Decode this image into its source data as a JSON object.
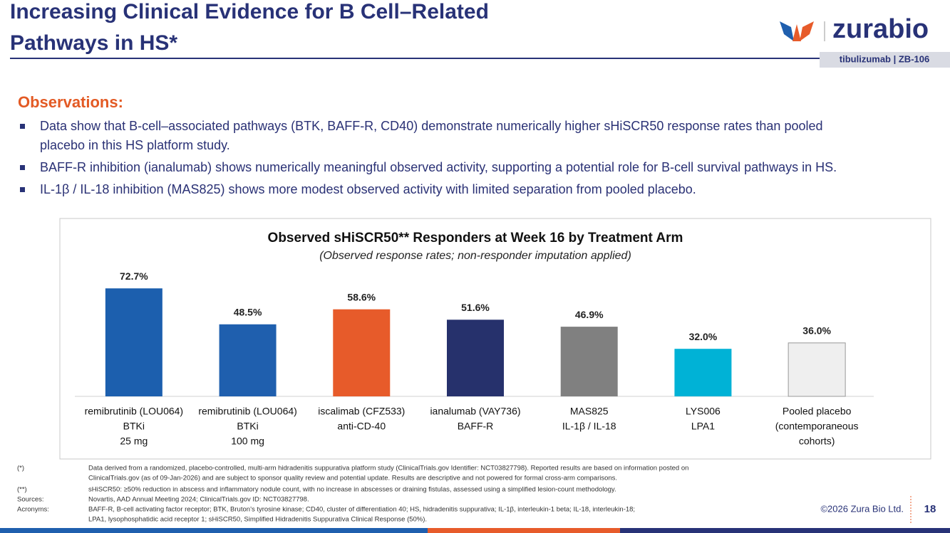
{
  "header": {
    "title": [
      "Increasing Clinical Evidence for B Cell–Related",
      "Pathways in HS*"
    ],
    "logo": "zurabio",
    "tag": "tibulizumab  |  ZB-106"
  },
  "observations": {
    "heading": "Observations:",
    "bullets": [
      [
        "Data show that B-cell–associated pathways (BTK, BAFF-R, CD40) demonstrate numerically higher sHiSCR50 response rates than pooled",
        "placebo in this HS platform study."
      ],
      [
        "BAFF-R inhibition (ianalumab) shows numerically meaningful observed activity, supporting a potential role for B-cell survival pathways in HS."
      ],
      [
        "IL-1β / IL-18 inhibition (MAS825) shows more modest observed activity with limited separation from pooled placebo."
      ]
    ]
  },
  "chart_data": {
    "type": "bar",
    "title": "Observed sHiSCR50** Responders at Week 16 by Treatment Arm",
    "subtitle": "(Observed response rates; non-responder imputation applied)",
    "categories": [
      [
        "remibrutinib (LOU064)",
        "BTKi",
        "25 mg"
      ],
      [
        "remibrutinib (LOU064)",
        "BTKi",
        "100 mg"
      ],
      [
        "iscalimab (CFZ533)",
        "anti-CD-40"
      ],
      [
        "ianalumab (VAY736)",
        "BAFF-R"
      ],
      [
        "MAS825",
        "IL-1β / IL-18"
      ],
      [
        "LYS006",
        "LPA1"
      ],
      [
        "Pooled placebo",
        "(contemporaneous",
        "cohorts)"
      ]
    ],
    "values": [
      72.7,
      48.5,
      58.6,
      51.6,
      46.9,
      32.0,
      36.0
    ],
    "value_labels": [
      "72.7%",
      "48.5%",
      "58.6%",
      "51.6%",
      "46.9%",
      "32.0%",
      "36.0%"
    ],
    "colors": [
      "#1c5fae",
      "#1f5fae",
      "#e75b2a",
      "#26316c",
      "#808080",
      "#00b2d6",
      "#efefef"
    ],
    "ylim": [
      0,
      80
    ]
  },
  "footnotes": [
    {
      "label": "(*)",
      "lines": [
        "Data derived from a randomized, placebo-controlled, multi-arm hidradenitis suppurativa platform study (ClinicalTrials.gov Identifier: NCT03827798). Reported results are based on information posted on",
        "ClinicalTrials.gov (as of 09-Jan-2026) and are subject to sponsor quality review and potential update. Results are descriptive and not powered for formal cross-arm comparisons."
      ]
    },
    {
      "label": "(**)",
      "lines": [
        "sHiSCR50: ≥50% reduction in abscess and inflammatory nodule count, with no increase in abscesses or draining fistulas, assessed using a simplified lesion-count methodology."
      ]
    },
    {
      "label": "Sources:",
      "lines": [
        "Novartis, AAD Annual Meeting 2024; ClinicalTrials.gov ID: NCT03827798."
      ]
    },
    {
      "label": "Acronyms:",
      "lines": [
        "BAFF-R, B-cell activating factor receptor; BTK, Bruton’s tyrosine kinase; CD40, cluster of differentiation 40; HS, hidradenitis suppurativa; IL-1β, interleukin-1 beta; IL-18, interleukin-18;",
        "LPA1, lysophosphatidic acid receptor 1; sHiSCR50, Simplified Hidradenitis Suppurativa Clinical Response (50%)."
      ]
    }
  ],
  "footer": {
    "copyright": "©2026 Zura Bio Ltd.",
    "page": "18"
  }
}
